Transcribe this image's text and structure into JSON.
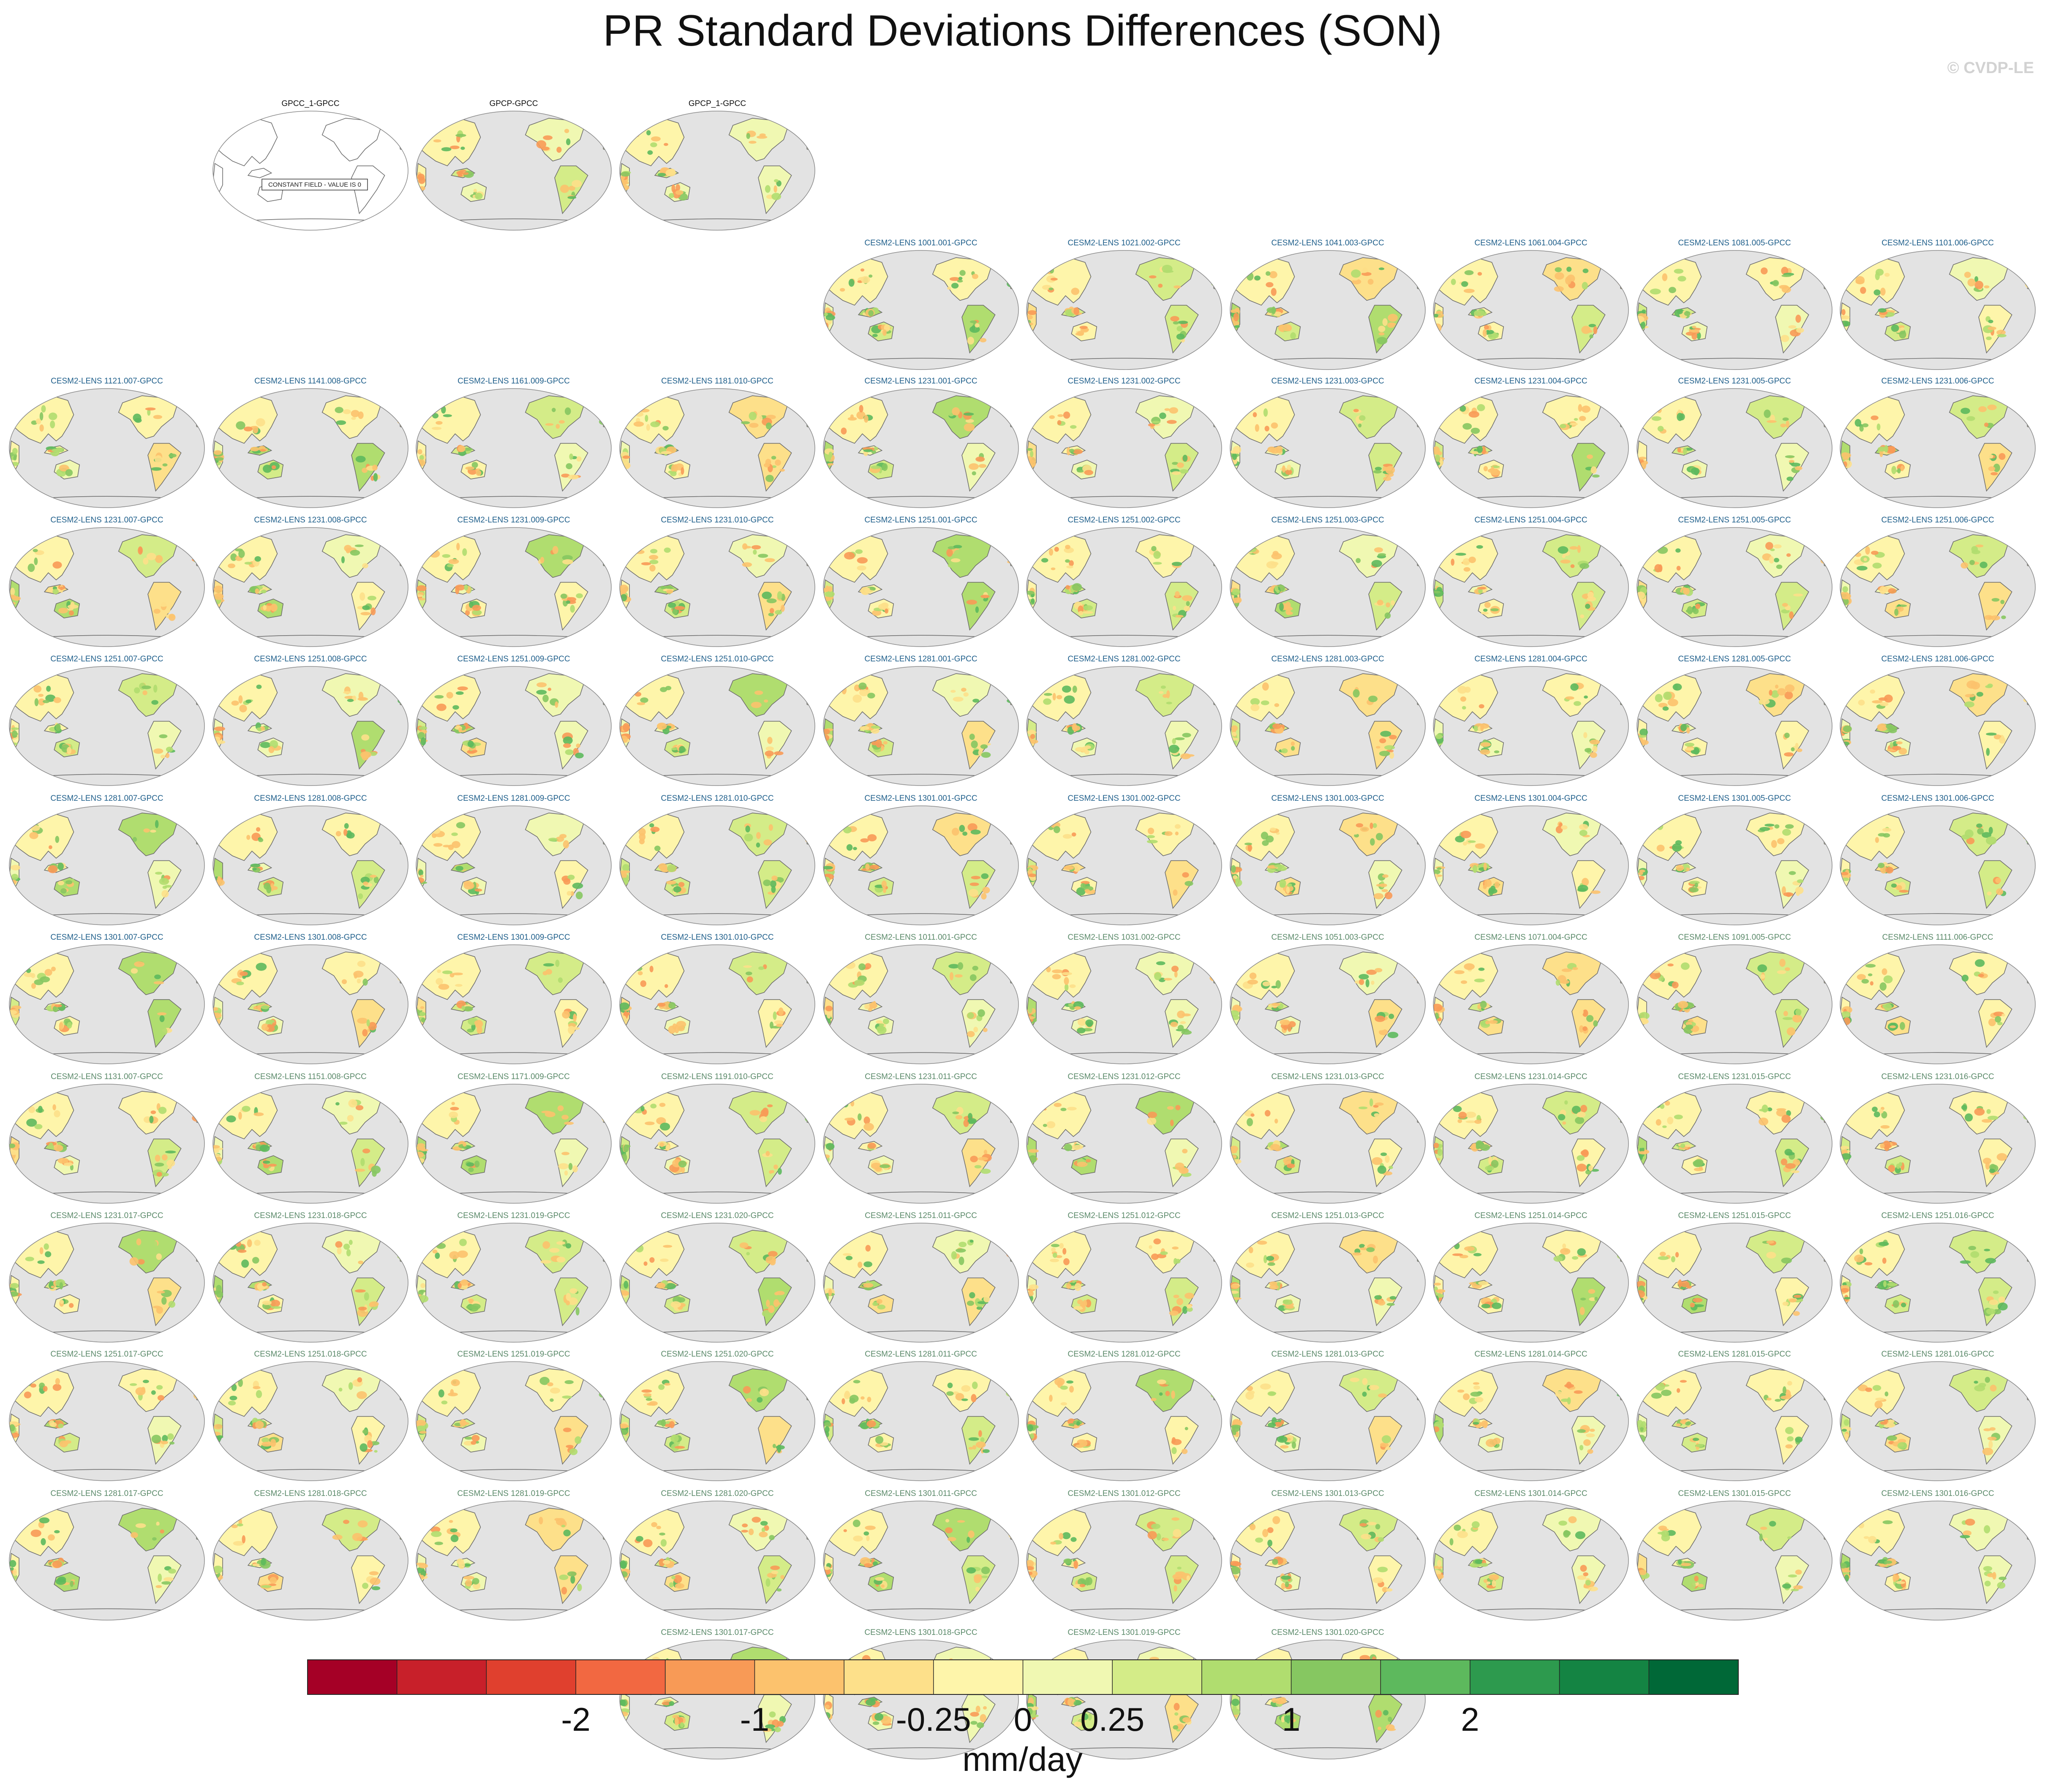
{
  "chart_data": {
    "type": "heatmap",
    "title": "PR Standard Deviations Differences (SON)",
    "watermark": "© CVDP-LE",
    "panel_map_projection": "Robinson, Pacific-centered",
    "obs_panel_titles": [
      "GPCC_1-GPCC",
      "GPCP-GPCC",
      "GPCP_1-GPCC"
    ],
    "constant_field_note": "CONSTANT FIELD - VALUE IS 0",
    "model_panel_titles": [
      "CESM2-LENS 1001.001-GPCC",
      "CESM2-LENS 1021.002-GPCC",
      "CESM2-LENS 1041.003-GPCC",
      "CESM2-LENS 1061.004-GPCC",
      "CESM2-LENS 1081.005-GPCC",
      "CESM2-LENS 1101.006-GPCC",
      "CESM2-LENS 1121.007-GPCC",
      "CESM2-LENS 1141.008-GPCC",
      "CESM2-LENS 1161.009-GPCC",
      "CESM2-LENS 1181.010-GPCC",
      "CESM2-LENS 1231.001-GPCC",
      "CESM2-LENS 1231.002-GPCC",
      "CESM2-LENS 1231.003-GPCC",
      "CESM2-LENS 1231.004-GPCC",
      "CESM2-LENS 1231.005-GPCC",
      "CESM2-LENS 1231.006-GPCC",
      "CESM2-LENS 1231.007-GPCC",
      "CESM2-LENS 1231.008-GPCC",
      "CESM2-LENS 1231.009-GPCC",
      "CESM2-LENS 1231.010-GPCC",
      "CESM2-LENS 1251.001-GPCC",
      "CESM2-LENS 1251.002-GPCC",
      "CESM2-LENS 1251.003-GPCC",
      "CESM2-LENS 1251.004-GPCC",
      "CESM2-LENS 1251.005-GPCC",
      "CESM2-LENS 1251.006-GPCC",
      "CESM2-LENS 1251.007-GPCC",
      "CESM2-LENS 1251.008-GPCC",
      "CESM2-LENS 1251.009-GPCC",
      "CESM2-LENS 1251.010-GPCC",
      "CESM2-LENS 1281.001-GPCC",
      "CESM2-LENS 1281.002-GPCC",
      "CESM2-LENS 1281.003-GPCC",
      "CESM2-LENS 1281.004-GPCC",
      "CESM2-LENS 1281.005-GPCC",
      "CESM2-LENS 1281.006-GPCC",
      "CESM2-LENS 1281.007-GPCC",
      "CESM2-LENS 1281.008-GPCC",
      "CESM2-LENS 1281.009-GPCC",
      "CESM2-LENS 1281.010-GPCC",
      "CESM2-LENS 1301.001-GPCC",
      "CESM2-LENS 1301.002-GPCC",
      "CESM2-LENS 1301.003-GPCC",
      "CESM2-LENS 1301.004-GPCC",
      "CESM2-LENS 1301.005-GPCC",
      "CESM2-LENS 1301.006-GPCC",
      "CESM2-LENS 1301.007-GPCC",
      "CESM2-LENS 1301.008-GPCC",
      "CESM2-LENS 1301.009-GPCC",
      "CESM2-LENS 1301.010-GPCC",
      "CESM2-LENS 1011.001-GPCC",
      "CESM2-LENS 1031.002-GPCC",
      "CESM2-LENS 1051.003-GPCC",
      "CESM2-LENS 1071.004-GPCC",
      "CESM2-LENS 1091.005-GPCC",
      "CESM2-LENS 1111.006-GPCC",
      "CESM2-LENS 1131.007-GPCC",
      "CESM2-LENS 1151.008-GPCC",
      "CESM2-LENS 1171.009-GPCC",
      "CESM2-LENS 1191.010-GPCC",
      "CESM2-LENS 1231.011-GPCC",
      "CESM2-LENS 1231.012-GPCC",
      "CESM2-LENS 1231.013-GPCC",
      "CESM2-LENS 1231.014-GPCC",
      "CESM2-LENS 1231.015-GPCC",
      "CESM2-LENS 1231.016-GPCC",
      "CESM2-LENS 1231.017-GPCC",
      "CESM2-LENS 1231.018-GPCC",
      "CESM2-LENS 1231.019-GPCC",
      "CESM2-LENS 1231.020-GPCC",
      "CESM2-LENS 1251.011-GPCC",
      "CESM2-LENS 1251.012-GPCC",
      "CESM2-LENS 1251.013-GPCC",
      "CESM2-LENS 1251.014-GPCC",
      "CESM2-LENS 1251.015-GPCC",
      "CESM2-LENS 1251.016-GPCC",
      "CESM2-LENS 1251.017-GPCC",
      "CESM2-LENS 1251.018-GPCC",
      "CESM2-LENS 1251.019-GPCC",
      "CESM2-LENS 1251.020-GPCC",
      "CESM2-LENS 1281.011-GPCC",
      "CESM2-LENS 1281.012-GPCC",
      "CESM2-LENS 1281.013-GPCC",
      "CESM2-LENS 1281.014-GPCC",
      "CESM2-LENS 1281.015-GPCC",
      "CESM2-LENS 1281.016-GPCC",
      "CESM2-LENS 1281.017-GPCC",
      "CESM2-LENS 1281.018-GPCC",
      "CESM2-LENS 1281.019-GPCC",
      "CESM2-LENS 1281.020-GPCC",
      "CESM2-LENS 1301.011-GPCC",
      "CESM2-LENS 1301.012-GPCC",
      "CESM2-LENS 1301.013-GPCC",
      "CESM2-LENS 1301.014-GPCC",
      "CESM2-LENS 1301.015-GPCC",
      "CESM2-LENS 1301.016-GPCC",
      "CESM2-LENS 1301.017-GPCC",
      "CESM2-LENS 1301.018-GPCC",
      "CESM2-LENS 1301.019-GPCC",
      "CESM2-LENS 1301.020-GPCC"
    ],
    "panel_rows": [
      3,
      6,
      10,
      10,
      10,
      10,
      10,
      10,
      10,
      10,
      10,
      4
    ],
    "colors_title_obs": "#111111",
    "colors_title_model_macro": "#1f5f8b",
    "colors_title_model_smbb": "#5b8a6a",
    "macro_member_count": 50,
    "ocean_fill": "#e3e3e3",
    "colorbar": {
      "units": "mm/day",
      "colors": [
        "#a50026",
        "#c8202a",
        "#e0402e",
        "#f26841",
        "#f89a56",
        "#fcc26d",
        "#fde08a",
        "#fef5aa",
        "#f0f8b2",
        "#d4ec88",
        "#b0dd6f",
        "#86c761",
        "#5db95d",
        "#2d9a4e",
        "#148443",
        "#006837"
      ],
      "tick_labels": [
        "-2",
        "-1",
        "-0.25",
        "0",
        "0.25",
        "1",
        "2"
      ],
      "tick_bounds": [
        3,
        5,
        7,
        8,
        9,
        11,
        13
      ]
    }
  }
}
